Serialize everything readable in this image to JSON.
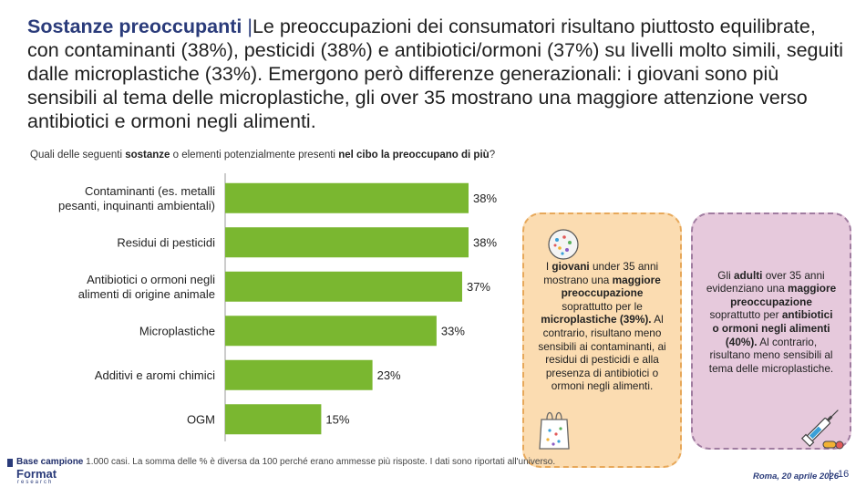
{
  "header": {
    "title_bold": "Sostanze preoccupanti",
    "separator": "|",
    "title_text": "Le preoccupazioni dei consumatori risultano piuttosto equilibrate, con contaminanti (38%), pesticidi (38%) e antibiotici/ormoni (37%) su livelli molto simili, seguiti dalle microplastiche (33%). Emergono però differenze generazionali: i giovani sono più sensibili al tema delle microplastiche, gli over 35 mostrano una maggiore attenzione verso antibiotici e ormoni negli alimenti."
  },
  "question": {
    "part1": "Quali delle seguenti ",
    "bold1": "sostanze",
    "part2": " o elementi potenzialmente presenti ",
    "bold2": "nel cibo la preoccupano di più",
    "part3": "?"
  },
  "chart_data": {
    "type": "bar",
    "orientation": "horizontal",
    "categories": [
      [
        "Contaminanti (es. metalli",
        "pesanti, inquinanti ambientali)"
      ],
      [
        "Residui di pesticidi"
      ],
      [
        "Antibiotici o ormoni negli",
        "alimenti di origine animale"
      ],
      [
        "Microplastiche"
      ],
      [
        "Additivi e aromi chimici"
      ],
      [
        "OGM"
      ]
    ],
    "values": [
      38,
      38,
      37,
      33,
      23,
      15
    ],
    "value_labels": [
      "38%",
      "38%",
      "37%",
      "33%",
      "23%",
      "15%"
    ],
    "bar_color": "#7ab730",
    "xlim": [
      0,
      38
    ],
    "grid": false
  },
  "callouts": {
    "young": {
      "t1": "I ",
      "b1": "giovani",
      "t2": " under 35 anni mostrano una ",
      "b2": "maggiore preoccupazione",
      "t3": " soprattutto per le ",
      "b3": "microplastiche (39%).",
      "t4": " Al contrario, risultano meno sensibili ai contaminanti, ai residui di pesticidi e alla presenza di antibiotici o ormoni negli alimenti.",
      "icon": "plastic-bag-icon",
      "bg": "#fbdcb1"
    },
    "adult": {
      "t1": "Gli ",
      "b1": "adulti",
      "t2": " over 35 anni evidenziano una ",
      "b2": "maggiore preoccupazione",
      "t3": " soprattutto per ",
      "b3": "antibiotici o ormoni negli alimenti (40%).",
      "t4": " Al contrario, risultano meno sensibili al tema delle microplastiche.",
      "icon": "syringe-pills-icon",
      "bg": "#e6c9dc"
    }
  },
  "footer": {
    "note_bold": "Base campione",
    "note": " 1.000 casi. La somma delle % è diversa da 100 perché erano ammesse più risposte. I dati sono riportati all'universo.",
    "logo": "Format",
    "logo_sub": "research",
    "date": "Roma, 20 aprile 2026",
    "page": "16"
  }
}
